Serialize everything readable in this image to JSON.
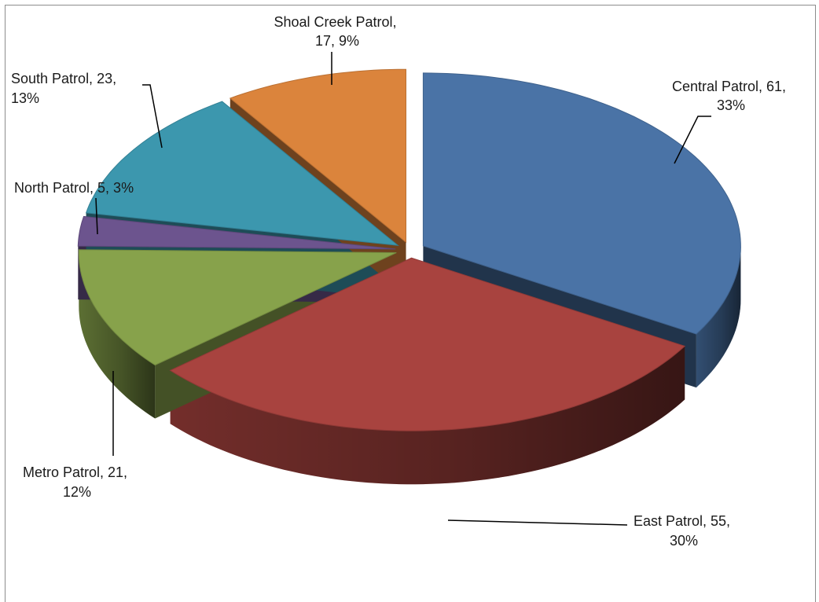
{
  "chart_data": {
    "type": "pie",
    "title": "",
    "style": "3d-exploded",
    "start_direction": "top",
    "direction": "clockwise",
    "categories": [
      "Central Patrol",
      "East Patrol",
      "Metro Patrol",
      "North Patrol",
      "South Patrol",
      "Shoal Creek Patrol"
    ],
    "values": [
      61,
      55,
      21,
      5,
      23,
      17
    ],
    "percents": [
      "33%",
      "30%",
      "12%",
      "3%",
      "13%",
      "9%"
    ],
    "colors": [
      "#4A73A6",
      "#A8433F",
      "#87A24B",
      "#6C548E",
      "#3C97AE",
      "#DB843C"
    ],
    "data_labels": [
      {
        "line1": "Central Patrol, 61,",
        "line2": "33%"
      },
      {
        "line1": "East Patrol, 55,",
        "line2": "30%"
      },
      {
        "line1": "Metro Patrol, 21,",
        "line2": "12%"
      },
      {
        "line1": "North Patrol, 5, 3%",
        "line2": ""
      },
      {
        "line1": "South Patrol, 23,",
        "line2": "13%"
      },
      {
        "line1": "Shoal Creek Patrol,",
        "line2": "17, 9%"
      }
    ],
    "legend": "none",
    "grid": false
  }
}
